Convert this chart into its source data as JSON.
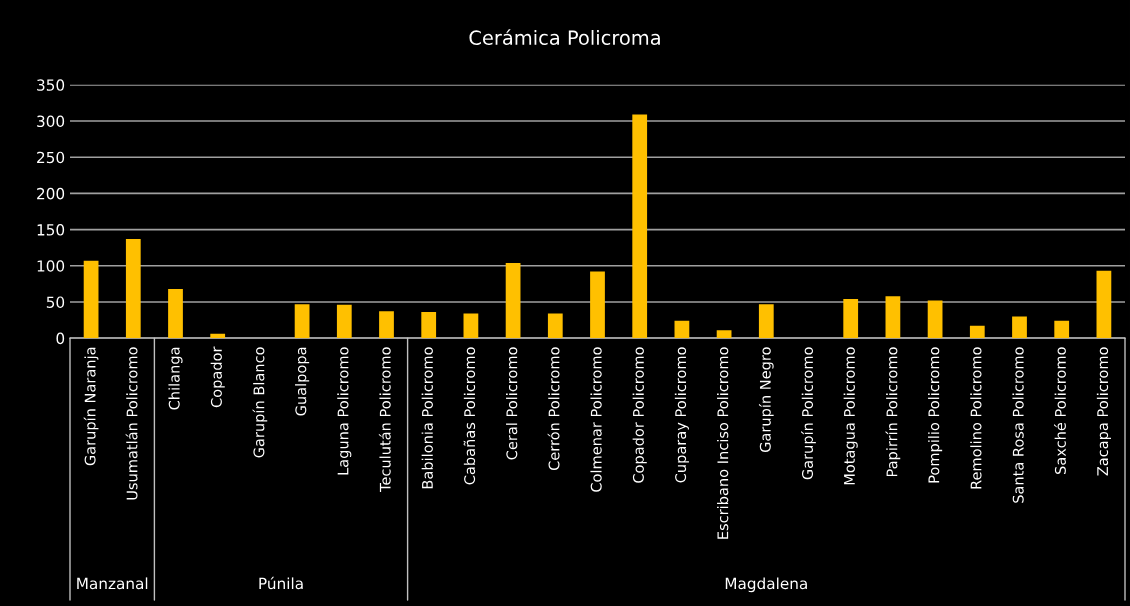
{
  "chart_data": {
    "type": "bar",
    "title": "Cerámica Policroma",
    "categories": [
      "Garupín Naranja",
      "Usumatlán Policromo",
      "Chilanga",
      "Copador",
      "Garupín Blanco",
      "Gualpopa",
      "Laguna Policromo",
      "Teculután Policromo",
      "Babilonia Policromo",
      "Cabañas Policromo",
      "Ceral Policromo",
      "Cerrón Policromo",
      "Colmenar Policromo",
      "Copador Policromo",
      "Cuparay Policromo",
      "Escribano Inciso Policromo",
      "Garupín Negro",
      "Garupín Policromo",
      "Motagua Policromo",
      "Papirrín Policromo",
      "Pompilio Policromo",
      "Remolino Policromo",
      "Santa Rosa Policromo",
      "Saxché Policromo",
      "Zacapa Policromo"
    ],
    "values": [
      107,
      137,
      68,
      6,
      0,
      47,
      46,
      37,
      36,
      34,
      104,
      34,
      92,
      309,
      24,
      11,
      47,
      0,
      54,
      58,
      52,
      17,
      30,
      24,
      93
    ],
    "color": "#ffc000",
    "ylim": [
      0,
      350
    ],
    "yticks": [
      0,
      50,
      100,
      150,
      200,
      250,
      300,
      350
    ],
    "grid": "y",
    "annotations": [
      "Manzanal",
      "Púnila",
      "Magdalena"
    ]
  }
}
